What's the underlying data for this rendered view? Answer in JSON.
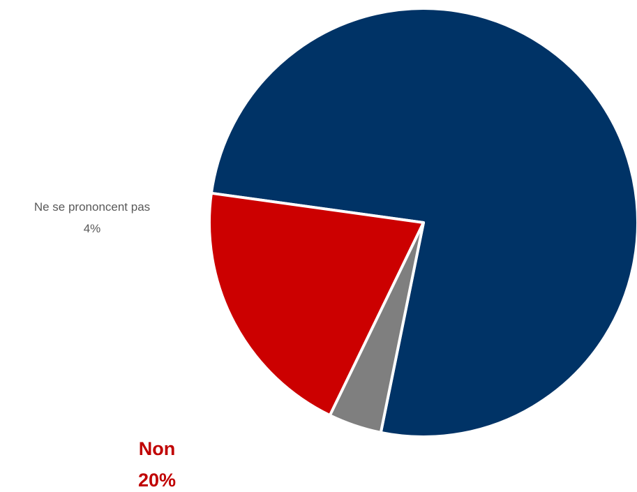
{
  "chart_data": {
    "type": "pie",
    "slices": [
      {
        "label": "",
        "value": 76,
        "value_label": "",
        "color": "#003366"
      },
      {
        "label": "Non",
        "value": 20,
        "value_label": "20%",
        "color": "#CC0000"
      },
      {
        "label": "Ne se prononcent pas",
        "value": 4,
        "value_label": "4%",
        "color": "#7F7F7F"
      }
    ],
    "legend": false
  }
}
